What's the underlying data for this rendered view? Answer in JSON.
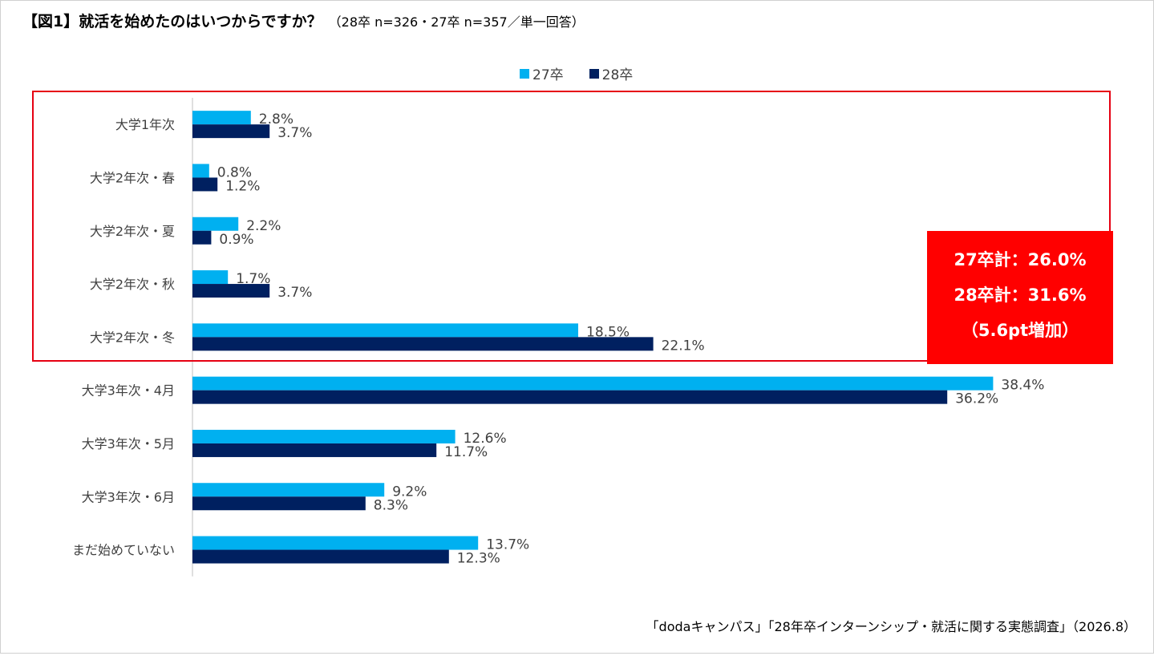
{
  "title": {
    "main": "【図1】就活を始めたのはいつからですか？",
    "sub": "（28卒 n=326・27卒 n=357／単一回答）"
  },
  "chart_data": {
    "type": "bar",
    "orientation": "horizontal",
    "categories": [
      "大学1年次",
      "大学2年次・春",
      "大学2年次・夏",
      "大学2年次・秋",
      "大学2年次・冬",
      "大学3年次・4月",
      "大学3年次・5月",
      "大学3年次・6月",
      "まだ始めていない"
    ],
    "series": [
      {
        "name": "27卒",
        "color": "#00b0f0",
        "values": [
          2.8,
          0.8,
          2.2,
          1.7,
          18.5,
          38.4,
          12.6,
          9.2,
          13.7
        ],
        "labels": [
          "2.8%",
          "0.8%",
          "2.2%",
          "1.7%",
          "18.5%",
          "38.4%",
          "12.6%",
          "9.2%",
          "13.7%"
        ]
      },
      {
        "name": "28卒",
        "color": "#002060",
        "values": [
          3.7,
          1.2,
          0.9,
          3.7,
          22.1,
          36.2,
          11.7,
          8.3,
          12.3
        ],
        "labels": [
          "3.7%",
          "1.2%",
          "0.9%",
          "3.7%",
          "22.1%",
          "36.2%",
          "11.7%",
          "8.3%",
          "12.3%"
        ]
      }
    ],
    "xlim": [
      0,
      40
    ],
    "grid": false,
    "legend_position": "top-center"
  },
  "callout": {
    "line1": "27卒計：26.0%",
    "line2": "28卒計：31.6%",
    "line3": "（5.6pt増加）",
    "color": "#ff0000"
  },
  "highlight_color": "#e60012",
  "source": "「dodaキャンパス」「28年卒インターンシップ・就活に関する実態調査」（2026.8）"
}
